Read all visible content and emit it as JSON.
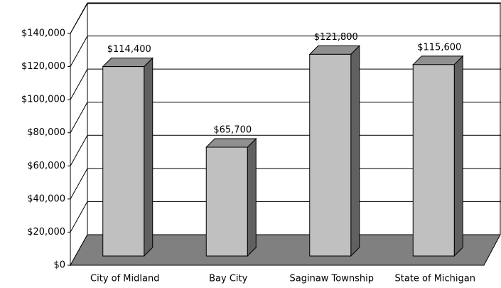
{
  "chart_data": {
    "type": "bar3d",
    "categories": [
      "City of Midland",
      "Bay City",
      "Saginaw Township",
      "State of Michigan"
    ],
    "values": [
      114400,
      65700,
      121800,
      115600
    ],
    "value_labels": [
      "$114,400",
      "$65,700",
      "$121,800",
      "$115,600"
    ],
    "color": "#c0c0c0",
    "ylim": [
      0,
      140000
    ],
    "yticks": [
      {
        "value": 0,
        "label": "$0"
      },
      {
        "value": 20000,
        "label": "$20,000"
      },
      {
        "value": 40000,
        "label": "$40,000"
      },
      {
        "value": 60000,
        "label": "$60,000"
      },
      {
        "value": 80000,
        "label": "$80,000"
      },
      {
        "value": 100000,
        "label": "$100,000"
      },
      {
        "value": 120000,
        "label": "$120,000"
      },
      {
        "value": 140000,
        "label": "$140,000"
      }
    ],
    "grid": true
  }
}
